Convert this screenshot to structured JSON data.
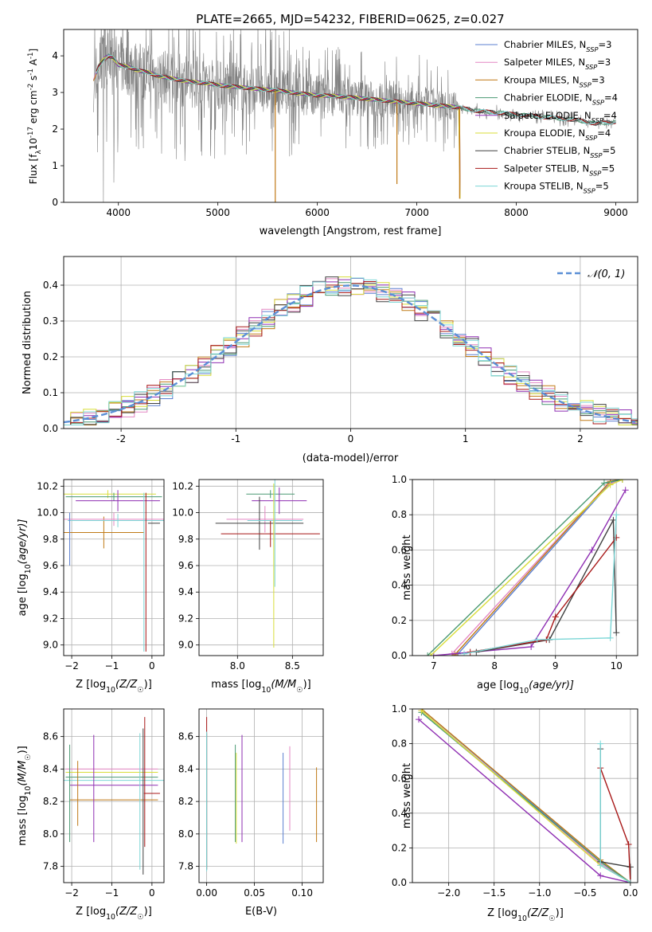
{
  "figure": {
    "title": "PLATE=2665, MJD=54232, FIBERID=0625, z=0.027"
  },
  "legend_entries": [
    {
      "label": "Chabrier MILES, N",
      "sub": "SSP",
      "tail": "=3",
      "color": "#5b7fd0"
    },
    {
      "label": "Salpeter MILES, N",
      "sub": "SSP",
      "tail": "=3",
      "color": "#e387c3"
    },
    {
      "label": "Kroupa MILES, N",
      "sub": "SSP",
      "tail": "=3",
      "color": "#c07a17"
    },
    {
      "label": "Chabrier ELODIE, N",
      "sub": "SSP",
      "tail": "=4",
      "color": "#4a9a73"
    },
    {
      "label": "Salpeter ELODIE, N",
      "sub": "SSP",
      "tail": "=4",
      "color": "#8f2fb3"
    },
    {
      "label": "Kroupa ELODIE, N",
      "sub": "SSP",
      "tail": "=4",
      "color": "#d8dd3a"
    },
    {
      "label": "Chabrier STELIB, N",
      "sub": "SSP",
      "tail": "=5",
      "color": "#404040"
    },
    {
      "label": "Salpeter STELIB, N",
      "sub": "SSP",
      "tail": "=5",
      "color": "#a81818"
    },
    {
      "label": "Kroupa STELIB, N",
      "sub": "SSP",
      "tail": "=5",
      "color": "#7bd6d6"
    }
  ],
  "chart_data": [
    {
      "id": "spectrum",
      "type": "line",
      "xlabel": "wavelength [Angstrom, rest frame]",
      "ylabel_parts": [
        "Flux [f",
        "λ",
        "10",
        "-17",
        " erg cm",
        "-2",
        " s",
        "-1",
        " A",
        "-1",
        "]"
      ],
      "xlim": [
        3450,
        9220
      ],
      "ylim": [
        0,
        4.72
      ],
      "xticks": [
        4000,
        5000,
        6000,
        7000,
        8000,
        9000
      ],
      "yticks": [
        0,
        1,
        2,
        3,
        4
      ],
      "data_color": "#808080",
      "continuum": {
        "x": [
          3750,
          3800,
          3850,
          3900,
          3950,
          4000,
          4100,
          4200,
          4300,
          4400,
          4500,
          4700,
          4900,
          5000,
          5200,
          5400,
          5600,
          5800,
          6000,
          6200,
          6400,
          6600,
          6800,
          7000,
          7200,
          7400,
          7600,
          7800,
          8000,
          8200,
          8400,
          8600,
          8800,
          9000
        ],
        "y": [
          3.3,
          3.7,
          3.9,
          4.0,
          3.95,
          3.75,
          3.7,
          3.6,
          3.55,
          3.45,
          3.4,
          3.3,
          3.25,
          3.2,
          3.15,
          3.1,
          3.05,
          2.98,
          2.92,
          2.9,
          2.85,
          2.8,
          2.75,
          2.7,
          2.65,
          2.6,
          2.5,
          2.45,
          2.4,
          2.35,
          2.3,
          2.25,
          2.15,
          2.2
        ]
      },
      "model_dips": [
        {
          "x": 5577,
          "depth": 0
        },
        {
          "x": 7430,
          "depth": 0.1
        },
        {
          "x": 6800,
          "depth": 0.5
        }
      ]
    },
    {
      "id": "residuals",
      "type": "histogram",
      "xlabel": "(data-model)/error",
      "ylabel": "Normed distribution",
      "xlim": [
        -2.5,
        2.5
      ],
      "ylim": [
        0,
        0.48
      ],
      "xticks": [
        -2,
        -1,
        0,
        1,
        2
      ],
      "yticks": [
        0.0,
        0.1,
        0.2,
        0.3,
        0.4
      ],
      "ytick_labels": [
        "0.0",
        "0.1",
        "0.2",
        "0.3",
        "0.4"
      ],
      "bin_width": 0.111,
      "gaussian": {
        "label": "𝒩(0, 1)",
        "color": "#5b8fd6",
        "mu": 0,
        "sigma": 1
      }
    },
    {
      "id": "age-vs-Z",
      "type": "errorbar",
      "xlabel_parts": [
        "Z [log",
        "10",
        "(Z/Z",
        "☉",
        ")]"
      ],
      "ylabel_parts": [
        "age  [log",
        "10",
        "(age/yr)]"
      ],
      "xlim": [
        -2.2,
        0.3
      ],
      "ylim": [
        8.92,
        10.25
      ],
      "xticks": [
        -2,
        -1,
        0
      ],
      "xtick_labels": [
        "−2",
        "−1",
        "0"
      ],
      "yticks": [
        9.0,
        9.2,
        9.4,
        9.6,
        9.8,
        10.0,
        10.2
      ],
      "ytick_labels": [
        "9.0",
        "9.2",
        "9.4",
        "9.6",
        "9.8",
        "10.0",
        "10.2"
      ],
      "points": [
        {
          "x": -1.2,
          "xerr": 1.0,
          "y": 9.85,
          "yerr": 0.12,
          "series": 2
        },
        {
          "x": -1.1,
          "xerr": 1.2,
          "y": 10.14,
          "yerr": 0.03,
          "series": 5
        },
        {
          "x": -0.95,
          "xerr": 1.2,
          "y": 10.12,
          "yerr": 0.03,
          "series": 3
        },
        {
          "x": -0.85,
          "xerr": 1.05,
          "y": 10.09,
          "yerr": 0.08,
          "series": 4
        },
        {
          "x": -0.95,
          "xerr": 1.25,
          "y": 9.95,
          "yerr": 0.05,
          "series": 1
        },
        {
          "x": -0.85,
          "xerr": 1.25,
          "y": 9.94,
          "yerr": 0.05,
          "series": 8
        },
        {
          "x": 0.05,
          "xerr": 0.15,
          "y": 9.92,
          "yerr": 0.0,
          "series": 6
        },
        {
          "x": -0.2,
          "xerr": 0.0,
          "y": 9.55,
          "yerr": 0.6,
          "series": 8
        },
        {
          "x": -0.15,
          "xerr": 0.0,
          "y": 9.55,
          "yerr": 0.6,
          "series": 7
        },
        {
          "x": -2.05,
          "xerr": 0.0,
          "y": 9.8,
          "yerr": 0.2,
          "series": 0
        }
      ]
    },
    {
      "id": "age-vs-mass",
      "type": "errorbar",
      "xlabel_parts": [
        "mass [log",
        "10",
        "(M/M",
        "☉",
        ")]"
      ],
      "xlim": [
        7.65,
        8.78
      ],
      "ylim": [
        8.92,
        10.25
      ],
      "xticks": [
        8.0,
        8.5
      ],
      "xtick_labels": [
        "8.0",
        "8.5"
      ],
      "yticks": [
        9.0,
        9.2,
        9.4,
        9.6,
        9.8,
        10.0,
        10.2
      ],
      "ytick_labels": [
        "9.0",
        "9.2",
        "9.4",
        "9.6",
        "9.8",
        "10.0",
        "10.2"
      ],
      "points": [
        {
          "x": 8.3,
          "xerr": 0.22,
          "y": 10.14,
          "yerr": 0.03,
          "series": 3
        },
        {
          "x": 8.38,
          "xerr": 0.25,
          "y": 10.09,
          "yerr": 0.1,
          "series": 4
        },
        {
          "x": 8.25,
          "xerr": 0.35,
          "y": 9.95,
          "yerr": 0.1,
          "series": 1
        },
        {
          "x": 8.2,
          "xerr": 0.4,
          "y": 9.92,
          "yerr": 0.2,
          "series": 6
        },
        {
          "x": 8.3,
          "xerr": 0.45,
          "y": 9.84,
          "yerr": 0.1,
          "series": 7
        },
        {
          "x": 8.34,
          "xerr": 0.25,
          "y": 9.94,
          "yerr": 0.5,
          "series": 8
        },
        {
          "x": 8.33,
          "xerr": 0.0,
          "y": 9.6,
          "yerr": 0.62,
          "series": 5
        }
      ]
    },
    {
      "id": "weight-vs-age",
      "type": "line",
      "xlabel_parts": [
        "age  [log",
        "10",
        "(age/yr)]"
      ],
      "ylabel": "mass weight",
      "xlim": [
        6.65,
        10.35
      ],
      "ylim": [
        0,
        1
      ],
      "xticks": [
        7,
        8,
        9,
        10
      ],
      "yticks": [
        0.0,
        0.2,
        0.4,
        0.6,
        0.8,
        1.0
      ],
      "ytick_labels": [
        "0.0",
        "0.2",
        "0.4",
        "0.6",
        "0.8",
        "1.0"
      ],
      "series": [
        {
          "x": [
            7.4,
            9.9,
            10.1
          ],
          "y": [
            0.01,
            0.98,
            1.0
          ]
        },
        {
          "x": [
            7.3,
            9.85,
            10.1
          ],
          "y": [
            0.01,
            0.97,
            1.0
          ]
        },
        {
          "x": [
            7.35,
            9.9,
            10.1
          ],
          "y": [
            0.005,
            0.99,
            1.0
          ]
        },
        {
          "x": [
            6.9,
            9.8,
            10.1
          ],
          "y": [
            0.0,
            0.98,
            1.0
          ]
        },
        {
          "x": [
            7.0,
            8.6,
            9.6,
            10.15
          ],
          "y": [
            0.0,
            0.05,
            0.6,
            0.94
          ]
        },
        {
          "x": [
            6.95,
            9.9,
            10.1
          ],
          "y": [
            0.0,
            0.97,
            1.0
          ]
        },
        {
          "x": [
            7.7,
            8.9,
            9.95,
            10.0
          ],
          "y": [
            0.02,
            0.09,
            0.77,
            0.13
          ]
        },
        {
          "x": [
            7.6,
            8.85,
            9.0,
            10.0
          ],
          "y": [
            0.02,
            0.09,
            0.22,
            0.67
          ]
        },
        {
          "x": [
            7.5,
            8.7,
            9.9,
            10.0
          ],
          "y": [
            0.01,
            0.09,
            0.1,
            0.8
          ]
        }
      ]
    },
    {
      "id": "mass-vs-Z",
      "type": "errorbar",
      "xlabel_parts": [
        "Z [log",
        "10",
        "(Z/Z",
        "☉",
        ")]"
      ],
      "ylabel_parts": [
        "mass [log",
        "10",
        "(M/M",
        "☉",
        ")]"
      ],
      "xlim": [
        -2.2,
        0.3
      ],
      "ylim": [
        7.7,
        8.77
      ],
      "xticks": [
        -2,
        -1,
        0
      ],
      "xtick_labels": [
        "−2",
        "−1",
        "0"
      ],
      "yticks": [
        7.8,
        8.0,
        8.2,
        8.4,
        8.6
      ],
      "ytick_labels": [
        "7.8",
        "8.0",
        "8.2",
        "8.4",
        "8.6"
      ],
      "points": [
        {
          "x": -1.0,
          "xerr": 1.15,
          "y": 8.4,
          "yerr": 0.0,
          "series": 1
        },
        {
          "x": -1.0,
          "xerr": 1.15,
          "y": 8.38,
          "yerr": 0.0,
          "series": 5
        },
        {
          "x": -1.0,
          "xerr": 1.15,
          "y": 8.35,
          "yerr": 0.0,
          "series": 3
        },
        {
          "x": -0.95,
          "xerr": 1.25,
          "y": 8.33,
          "yerr": 0.0,
          "series": 8
        },
        {
          "x": -0.95,
          "xerr": 1.1,
          "y": 8.3,
          "yerr": 0.0,
          "series": 4
        },
        {
          "x": -0.95,
          "xerr": 1.1,
          "y": 8.21,
          "yerr": 0.0,
          "series": 2
        },
        {
          "x": 0.0,
          "xerr": 0.2,
          "y": 8.25,
          "yerr": 0.0,
          "series": 7
        },
        {
          "x": -1.45,
          "xerr": 0.0,
          "y": 8.28,
          "yerr": 0.33,
          "series": 4
        },
        {
          "x": -1.85,
          "xerr": 0.0,
          "y": 8.25,
          "yerr": 0.2,
          "series": 2
        },
        {
          "x": -2.05,
          "xerr": 0.0,
          "y": 8.25,
          "yerr": 0.3,
          "series": 3
        },
        {
          "x": -0.22,
          "xerr": 0.0,
          "y": 8.2,
          "yerr": 0.45,
          "series": 6
        },
        {
          "x": -0.18,
          "xerr": 0.0,
          "y": 8.32,
          "yerr": 0.4,
          "series": 7
        },
        {
          "x": -0.3,
          "xerr": 0.0,
          "y": 8.2,
          "yerr": 0.42,
          "series": 8
        }
      ]
    },
    {
      "id": "mass-vs-EBV",
      "type": "errorbar",
      "xlabel": "E(B-V)",
      "xlim": [
        -0.008,
        0.122
      ],
      "ylim": [
        7.7,
        8.77
      ],
      "xticks": [
        0.0,
        0.05,
        0.1
      ],
      "xtick_labels": [
        "0.00",
        "0.05",
        "0.10"
      ],
      "yticks": [
        7.8,
        8.0,
        8.2,
        8.4,
        8.6
      ],
      "ytick_labels": [
        "7.8",
        "8.0",
        "8.2",
        "8.4",
        "8.6"
      ],
      "points": [
        {
          "x": 0.0,
          "xerr": 0.0,
          "y": 8.25,
          "yerr": 0.47,
          "series": 7
        },
        {
          "x": 0.0,
          "xerr": 0.0,
          "y": 8.2,
          "yerr": 0.42,
          "series": 6
        },
        {
          "x": 0.0,
          "xerr": 0.0,
          "y": 8.2,
          "yerr": 0.43,
          "series": 8
        },
        {
          "x": 0.03,
          "xerr": 0.0,
          "y": 8.25,
          "yerr": 0.3,
          "series": 3
        },
        {
          "x": 0.031,
          "xerr": 0.0,
          "y": 8.22,
          "yerr": 0.28,
          "series": 5
        },
        {
          "x": 0.037,
          "xerr": 0.0,
          "y": 8.28,
          "yerr": 0.33,
          "series": 4
        },
        {
          "x": 0.08,
          "xerr": 0.0,
          "y": 8.22,
          "yerr": 0.28,
          "series": 0
        },
        {
          "x": 0.087,
          "xerr": 0.0,
          "y": 8.28,
          "yerr": 0.26,
          "series": 1
        },
        {
          "x": 0.115,
          "xerr": 0.0,
          "y": 8.18,
          "yerr": 0.23,
          "series": 2
        }
      ]
    },
    {
      "id": "weight-vs-Z",
      "type": "line",
      "xlabel_parts": [
        "Z [log",
        "10",
        "(Z/Z",
        "☉",
        ")]"
      ],
      "ylabel": "mass weight",
      "xlim": [
        -2.4,
        0.08
      ],
      "ylim": [
        0,
        1
      ],
      "xticks": [
        -2.0,
        -1.5,
        -1.0,
        -0.5,
        0.0
      ],
      "xtick_labels": [
        "−2.0",
        "−1.5",
        "−1.0",
        "−0.5",
        "0.0"
      ],
      "yticks": [
        0.0,
        0.2,
        0.4,
        0.6,
        0.8,
        1.0
      ],
      "ytick_labels": [
        "0.0",
        "0.2",
        "0.4",
        "0.6",
        "0.8",
        "1.0"
      ],
      "series": [
        {
          "x": [
            -2.3,
            -0.33,
            0.0
          ],
          "y": [
            1.0,
            0.12,
            0.0
          ]
        },
        {
          "x": [
            -2.3,
            -0.33,
            0.0
          ],
          "y": [
            0.99,
            0.11,
            0.0
          ]
        },
        {
          "x": [
            -2.3,
            -0.33,
            0.0
          ],
          "y": [
            1.0,
            0.13,
            0.0
          ]
        },
        {
          "x": [
            -2.3,
            -0.33,
            0.0
          ],
          "y": [
            0.98,
            0.12,
            0.0
          ]
        },
        {
          "x": [
            -2.33,
            -0.33,
            0.0
          ],
          "y": [
            0.94,
            0.04,
            0.0
          ]
        },
        {
          "x": [
            -2.3,
            -0.33,
            0.0
          ],
          "y": [
            0.99,
            0.1,
            0.0
          ]
        },
        {
          "x": [
            -0.33,
            -0.33,
            0.0,
            0.0
          ],
          "y": [
            0.77,
            0.12,
            0.09,
            0.0
          ]
        },
        {
          "x": [
            -0.33,
            -0.02,
            0.0
          ],
          "y": [
            0.66,
            0.22,
            0.0
          ]
        },
        {
          "x": [
            -0.33,
            -0.33,
            0.0
          ],
          "y": [
            0.8,
            0.1,
            0.0
          ]
        }
      ]
    }
  ]
}
